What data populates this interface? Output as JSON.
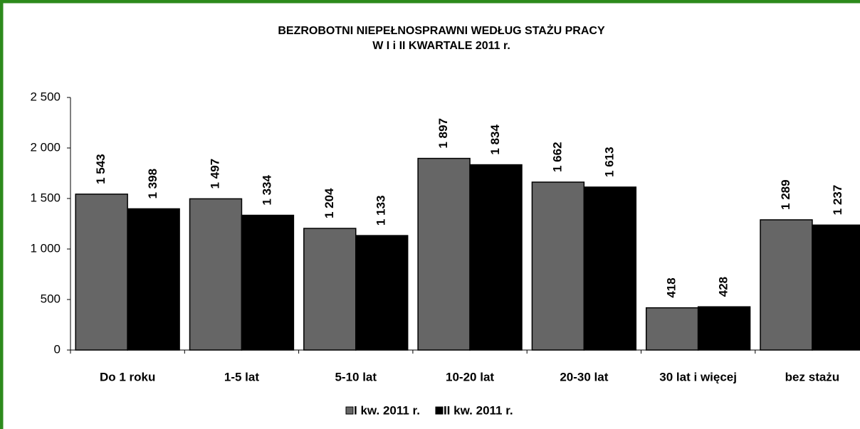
{
  "chart_data": {
    "type": "bar",
    "title": [
      "BEZROBOTNI NIEPEŁNOSPRAWNI WEDŁUG  STAŻU  PRACY",
      "W I i II KWARTALE 2011 r."
    ],
    "categories": [
      "Do 1 roku",
      "1-5 lat",
      "5-10 lat",
      "10-20 lat",
      "20-30 lat",
      "30 lat i więcej",
      "bez stażu"
    ],
    "series": [
      {
        "name": "I kw. 2011 r.",
        "color": "#666666",
        "values": [
          1543,
          1497,
          1204,
          1897,
          1662,
          418,
          1289
        ],
        "value_labels": [
          "1 543",
          "1 497",
          "1 204",
          "1 897",
          "1 662",
          "418",
          "1 289"
        ]
      },
      {
        "name": "II kw. 2011 r.",
        "color": "#000000",
        "values": [
          1398,
          1334,
          1133,
          1834,
          1613,
          428,
          1237
        ],
        "value_labels": [
          "1 398",
          "1 334",
          "1 133",
          "1 834",
          "1 613",
          "428",
          "1 237"
        ]
      }
    ],
    "ylim": [
      0,
      2500
    ],
    "yticks": [
      0,
      500,
      {
        "value": 1000,
        "label": "1 000"
      },
      {
        "value": 1500,
        "label": "1 500"
      },
      {
        "value": 2000,
        "label": "2 000"
      },
      {
        "value": 2500,
        "label": "2 500"
      }
    ],
    "legend": "bottom"
  }
}
